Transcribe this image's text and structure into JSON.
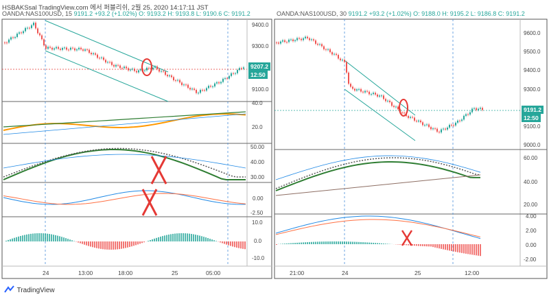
{
  "header": {
    "text": "HSBAKSsal TradingView.com 에서 퍼블리쉬, 2월 25, 2020 14:17:11 JST"
  },
  "colors": {
    "up": "#26a69a",
    "down": "#ef5350",
    "channel": "#26a69a",
    "cursor": "#e53935"
  },
  "left_chart": {
    "symbol": "OANDA:NAS100USD, 15",
    "price": "9191.2",
    "change": "+93.2 (+1.02%)",
    "ohlc": "O: 9193.2 H: 9193.8 L: 9190.6 C: 9191.2",
    "price_axis": [
      "9400.0",
      "9300.0",
      "9100.0"
    ],
    "last_badge": "9207.2",
    "time_badge": "12:50",
    "rsi_axis": [
      "40.0",
      "20.0"
    ],
    "stoch_axis": [
      "50.00",
      "40.00",
      "30.00"
    ],
    "macd_axis": [
      "0.00",
      "-2.50"
    ],
    "hist_axis": [
      "10.0",
      "0.0",
      "-10.0"
    ],
    "time_axis": [
      "24",
      "13:00",
      "18:00",
      "25",
      "05:00"
    ]
  },
  "right_chart": {
    "symbol": "OANDA:NAS100USD, 30",
    "price": "9191.2",
    "change": "+93.2 (+1.02%)",
    "ohlc": "O: 9188.0 H: 9195.2 L: 9186.8 C: 9191.2",
    "price_axis": [
      "9600.0",
      "9500.0",
      "9400.0",
      "9300.0",
      "9100.0",
      "9000.0"
    ],
    "last_badge": "9191.2",
    "time_badge": "12:50",
    "ind_axis": [
      "60.00",
      "40.00",
      "20.00"
    ],
    "macd_axis": [
      "4.00",
      "2.00",
      "0.00",
      "-2.00"
    ],
    "time_axis": [
      "21:00",
      "24",
      "25",
      "12:00"
    ]
  },
  "footer": {
    "brand": "TradingView"
  }
}
